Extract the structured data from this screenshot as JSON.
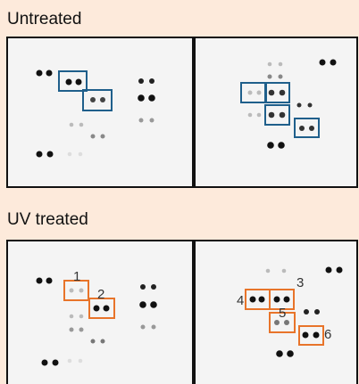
{
  "untreated": {
    "title": "Untreated"
  },
  "uv_treated": {
    "title": "UV treated",
    "labels": [
      "1",
      "2",
      "3",
      "4",
      "5",
      "6"
    ]
  }
}
